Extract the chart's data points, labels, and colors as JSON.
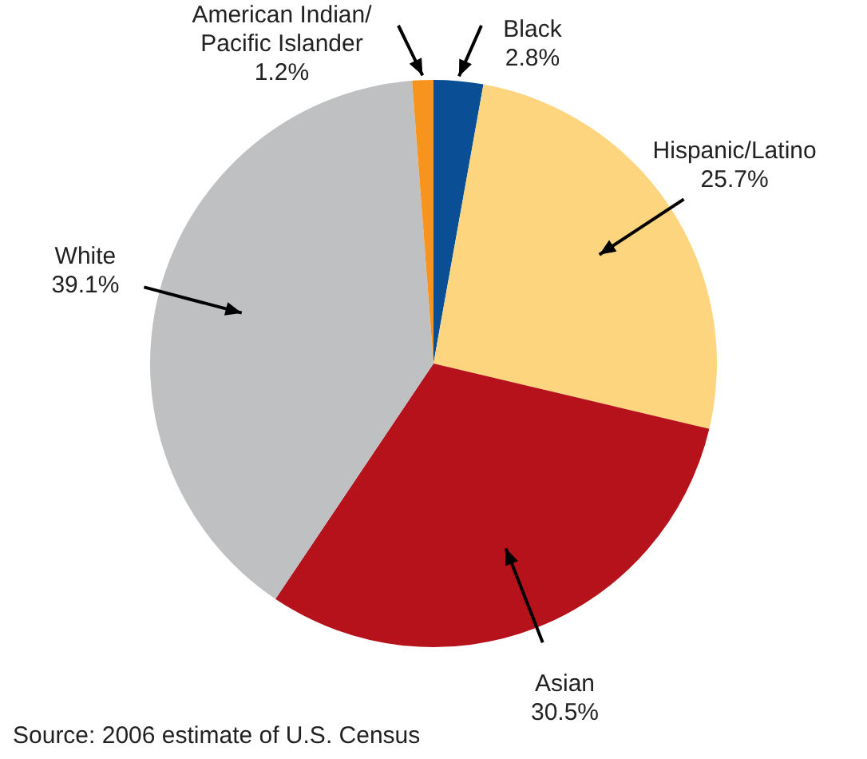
{
  "chart_data": {
    "type": "pie",
    "categories": [
      "Black",
      "Hispanic/Latino",
      "Asian",
      "White",
      "American Indian/\nPacific Islander"
    ],
    "values": [
      2.8,
      25.7,
      30.5,
      39.1,
      1.2
    ],
    "value_labels": [
      "2.8%",
      "25.7%",
      "30.5%",
      "39.1%",
      "1.2%"
    ],
    "colors": [
      "#0a4f96",
      "#fed57f",
      "#b5121b",
      "#bfc0c2",
      "#f7941d"
    ],
    "legend": false,
    "annotations": [
      "Source: 2006 estimate of U.S. Census"
    ]
  }
}
